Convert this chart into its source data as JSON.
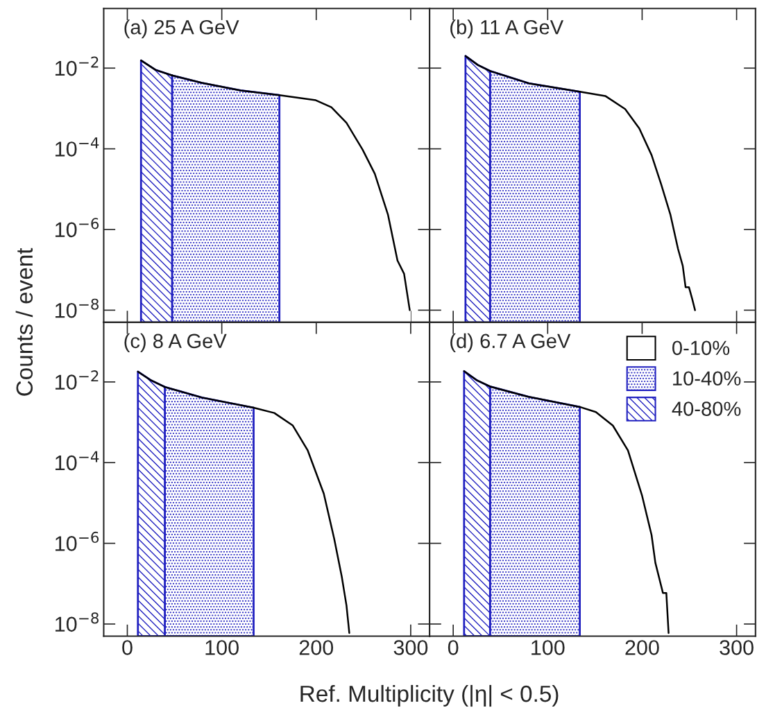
{
  "chart_data": [
    {
      "type": "area",
      "title": "(a) 25 A GeV",
      "ylabel": "Counts / event",
      "log": "y",
      "xlim": [
        -25,
        320
      ],
      "ylim": [
        5e-09,
        0.3
      ],
      "xticks": [
        0,
        100,
        200,
        300
      ],
      "yticks": [
        {
          "value": 0.01,
          "label": "10$^{−2}$"
        },
        {
          "value": 0.0001,
          "label": "10$^{−4}$"
        },
        {
          "value": 1e-06,
          "label": "10$^{−6}$"
        },
        {
          "value": 1e-08,
          "label": "10$^{−8}$"
        }
      ],
      "tick_labels": "y",
      "legend": false,
      "series": [
        {
          "color": "#ffffff",
          "x": [
            161,
            199.5,
            216,
            232,
            249,
            262,
            276,
            286,
            293,
            299
          ],
          "values": [
            0.00214,
            0.0016,
            0.00107,
            0.00044,
            9.6e-05,
            2.4e-05,
            2.3e-06,
            1.7e-07,
            8e-08,
            1e-08
          ]
        },
        {
          "color": "#2020c0",
          "x": [
            47.4,
            79,
            120,
            161
          ],
          "values": [
            0.0066,
            0.0043,
            0.0028,
            0.00214
          ]
        },
        {
          "color": "#2020c0",
          "x": [
            14.5,
            30,
            47.4
          ],
          "values": [
            0.0155,
            0.009,
            0.0066
          ]
        }
      ]
    },
    {
      "type": "area",
      "title": "(b) 11 A GeV",
      "log": "y",
      "xlim": [
        -25,
        320
      ],
      "ylim": [
        5e-09,
        0.3
      ],
      "xticks": [
        0,
        100,
        200,
        300
      ],
      "yticks": [
        0.01,
        0.0001,
        1e-06,
        1e-08
      ],
      "tick_labels": false,
      "legend": false,
      "series": [
        {
          "color": "#ffffff",
          "x": [
            134,
            161,
            182,
            197,
            210,
            220,
            230,
            238,
            243,
            246,
            249.6,
            253,
            256
          ],
          "values": [
            0.0026,
            0.00204,
            0.00097,
            0.00032,
            7e-05,
            1.35e-05,
            2.3e-06,
            3.3e-07,
            1.26e-07,
            3.7e-08,
            3.7e-08,
            1.9e-08,
            1e-08
          ]
        },
        {
          "color": "#2020c0",
          "x": [
            39,
            80,
            134
          ],
          "values": [
            0.0085,
            0.0042,
            0.0026
          ]
        },
        {
          "color": "#2020c0",
          "x": [
            13,
            26,
            39
          ],
          "values": [
            0.02,
            0.012,
            0.0085
          ]
        }
      ]
    },
    {
      "type": "area",
      "title": "(c) 8 A GeV",
      "xlabel": "Ref. Multiplicity (|η| < 0.5)",
      "log": "y",
      "xlim": [
        -25,
        320
      ],
      "ylim": [
        5e-09,
        0.3
      ],
      "xticks": [
        0,
        100,
        200,
        300
      ],
      "yticks": [
        {
          "value": 0.01,
          "label": "10$^{−2}$"
        },
        {
          "value": 0.0001,
          "label": "10$^{−4}$"
        },
        {
          "value": 1e-06,
          "label": "10$^{−6}$"
        },
        {
          "value": 1e-08,
          "label": "10$^{−8}$"
        }
      ],
      "legend": false,
      "series": [
        {
          "color": "#ffffff",
          "x": [
            133.7,
            155.6,
            175,
            191,
            208,
            219,
            227,
            232,
            235
          ],
          "values": [
            0.0023,
            0.0017,
            0.00084,
            0.0002,
            1.7e-05,
            1.3e-06,
            1.5e-07,
            2.9e-08,
            6e-09
          ]
        },
        {
          "color": "#2020c0",
          "x": [
            39.7,
            79,
            133.7
          ],
          "values": [
            0.0075,
            0.0041,
            0.0023
          ]
        },
        {
          "color": "#2020c0",
          "x": [
            11.2,
            25,
            39.7
          ],
          "values": [
            0.018,
            0.011,
            0.0075
          ]
        }
      ]
    },
    {
      "type": "area",
      "title": "(d) 6.7 A GeV",
      "log": "y",
      "xlim": [
        -25,
        320
      ],
      "ylim": [
        5e-09,
        0.3
      ],
      "xticks": [
        0,
        100,
        200,
        300
      ],
      "yticks": [
        0.01,
        0.0001,
        1e-06,
        1e-08
      ],
      "tick_labels": "x",
      "legend": "top right",
      "series": [
        {
          "name": "0-10%",
          "color": "#ffffff",
          "x": [
            134,
            151,
            169,
            185,
            200,
            210,
            214,
            222,
            225.6,
            228
          ],
          "values": [
            0.0024,
            0.0018,
            0.00083,
            0.0002,
            1.5e-05,
            1.6e-06,
            3.3e-07,
            5.9e-08,
            5.9e-08,
            6e-09
          ]
        },
        {
          "name": "10-40%",
          "color": "#2020c0",
          "x": [
            39,
            79.5,
            134
          ],
          "values": [
            0.0077,
            0.0043,
            0.0024
          ]
        },
        {
          "name": "40-80%",
          "color": "#2020c0",
          "x": [
            11.5,
            25,
            39
          ],
          "values": [
            0.0185,
            0.011,
            0.0077
          ]
        }
      ]
    }
  ]
}
